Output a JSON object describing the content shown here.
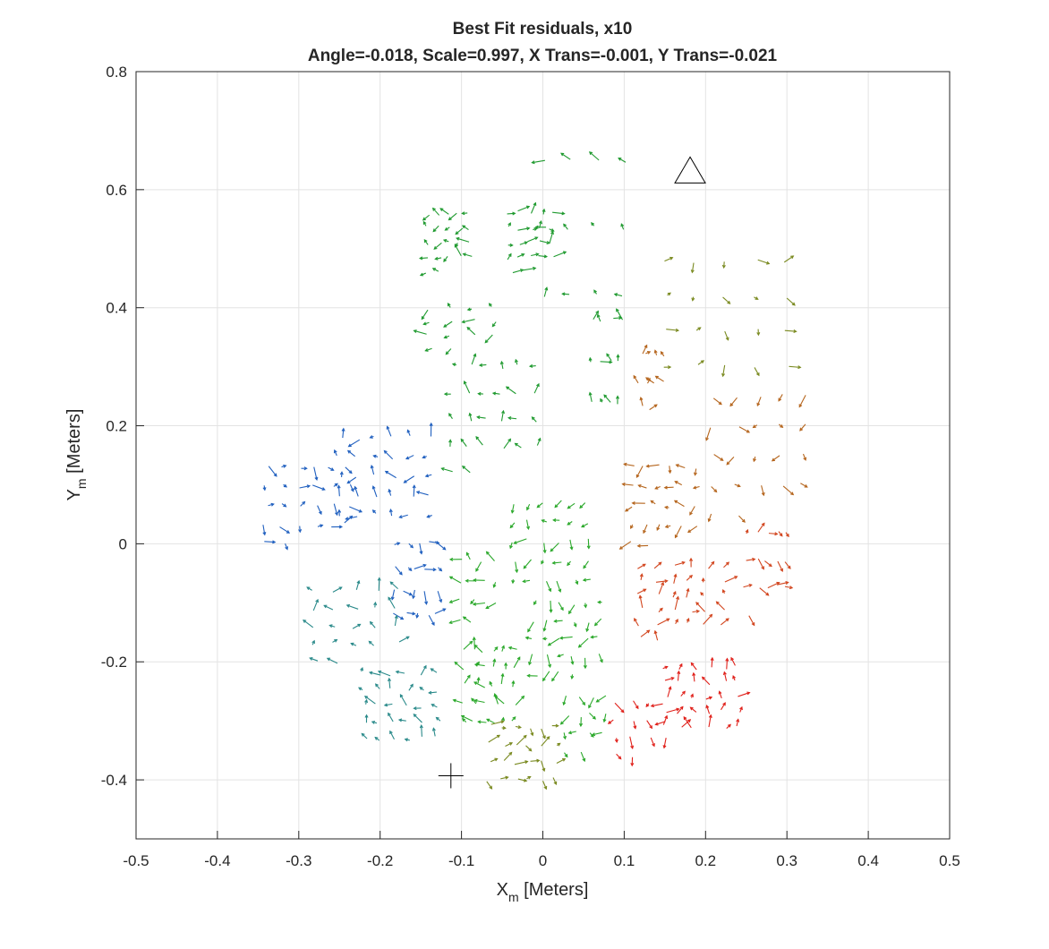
{
  "chart_data": {
    "type": "quiver",
    "title_line1": "Best Fit residuals, x10",
    "title_line2": "Angle=-0.018, Scale=0.997, X Trans=-0.001, Y Trans=-0.021",
    "xlabel": "X",
    "xlabel_sub": "m",
    "xlabel_unit": " [Meters]",
    "ylabel": "Y",
    "ylabel_sub": "m",
    "ylabel_unit": " [Meters]",
    "xlim": [
      -0.5,
      0.5
    ],
    "ylim": [
      -0.5,
      0.8
    ],
    "xticks": [
      -0.5,
      -0.4,
      -0.3,
      -0.2,
      -0.1,
      0,
      0.1,
      0.2,
      0.3,
      0.4,
      0.5
    ],
    "xtick_labels": [
      "-0.5",
      "-0.4",
      "-0.3",
      "-0.2",
      "-0.1",
      "0",
      "0.1",
      "0.2",
      "0.3",
      "0.4",
      "0.5"
    ],
    "yticks": [
      -0.4,
      -0.2,
      0,
      0.2,
      0.4,
      0.6,
      0.8
    ],
    "ytick_labels": [
      "-0.4",
      "-0.2",
      "0",
      "0.2",
      "0.4",
      "0.6",
      "0.8"
    ],
    "grid": true,
    "markers": [
      {
        "type": "triangle",
        "x": 0.181,
        "y": 0.631
      },
      {
        "type": "plus",
        "x": -0.113,
        "y": -0.393
      }
    ],
    "colors": {
      "blue": "#1f5fbf",
      "teal": "#2a8a8a",
      "green": "#2aa82a",
      "green_dark": "#1f9a2f",
      "olive": "#7a8a20",
      "orange": "#b5651d",
      "red_orange": "#d2451e",
      "red": "#e0201a"
    },
    "arrow_groups": [
      {
        "color": "green_dark",
        "count": 22,
        "x": [
          -0.14,
          -0.09
        ],
        "y": [
          0.46,
          0.56
        ]
      },
      {
        "color": "green_dark",
        "count": 22,
        "x": [
          -0.04,
          0.01
        ],
        "y": [
          0.46,
          0.56
        ]
      },
      {
        "color": "green_dark",
        "count": 12,
        "x": [
          0.0,
          0.1
        ],
        "y": [
          0.42,
          0.65
        ]
      },
      {
        "color": "green_dark",
        "count": 14,
        "x": [
          -0.14,
          -0.06
        ],
        "y": [
          0.33,
          0.4
        ]
      },
      {
        "color": "green_dark",
        "count": 12,
        "x": [
          0.06,
          0.095
        ],
        "y": [
          0.24,
          0.38
        ]
      },
      {
        "color": "green_dark",
        "count": 26,
        "x": [
          -0.11,
          -0.01
        ],
        "y": [
          0.12,
          0.3
        ]
      },
      {
        "color": "olive",
        "count": 20,
        "x": [
          0.15,
          0.3
        ],
        "y": [
          0.3,
          0.48
        ]
      },
      {
        "color": "orange",
        "count": 10,
        "x": [
          0.12,
          0.15
        ],
        "y": [
          0.23,
          0.32
        ]
      },
      {
        "color": "orange",
        "count": 22,
        "x": [
          0.21,
          0.32
        ],
        "y": [
          0.05,
          0.25
        ]
      },
      {
        "color": "orange",
        "count": 26,
        "x": [
          0.11,
          0.19
        ],
        "y": [
          0.0,
          0.13
        ]
      },
      {
        "color": "blue",
        "count": 26,
        "x": [
          -0.34,
          -0.24
        ],
        "y": [
          0.0,
          0.13
        ]
      },
      {
        "color": "blue",
        "count": 30,
        "x": [
          -0.25,
          -0.14
        ],
        "y": [
          0.05,
          0.18
        ]
      },
      {
        "color": "blue",
        "count": 20,
        "x": [
          -0.18,
          -0.13
        ],
        "y": [
          -0.12,
          -0.0
        ]
      },
      {
        "color": "teal",
        "count": 22,
        "x": [
          -0.28,
          -0.18
        ],
        "y": [
          -0.2,
          -0.08
        ]
      },
      {
        "color": "teal",
        "count": 30,
        "x": [
          -0.22,
          -0.13
        ],
        "y": [
          -0.33,
          -0.22
        ]
      },
      {
        "color": "green",
        "count": 30,
        "x": [
          -0.035,
          0.055
        ],
        "y": [
          -0.06,
          0.07
        ]
      },
      {
        "color": "green",
        "count": 14,
        "x": [
          -0.1,
          -0.06
        ],
        "y": [
          -0.13,
          -0.03
        ]
      },
      {
        "color": "green",
        "count": 28,
        "x": [
          -0.01,
          0.07
        ],
        "y": [
          -0.22,
          -0.1
        ]
      },
      {
        "color": "green",
        "count": 30,
        "x": [
          -0.095,
          -0.035
        ],
        "y": [
          -0.3,
          -0.18
        ]
      },
      {
        "color": "green",
        "count": 14,
        "x": [
          0.03,
          0.075
        ],
        "y": [
          -0.35,
          -0.26
        ]
      },
      {
        "color": "olive",
        "count": 24,
        "x": [
          -0.065,
          0.015
        ],
        "y": [
          -0.4,
          -0.31
        ]
      },
      {
        "color": "red_orange",
        "count": 32,
        "x": [
          0.12,
          0.22
        ],
        "y": [
          -0.16,
          -0.04
        ]
      },
      {
        "color": "red_orange",
        "count": 16,
        "x": [
          0.25,
          0.3
        ],
        "y": [
          -0.12,
          0.02
        ]
      },
      {
        "color": "red",
        "count": 14,
        "x": [
          0.09,
          0.15
        ],
        "y": [
          -0.36,
          -0.27
        ]
      },
      {
        "color": "red",
        "count": 30,
        "x": [
          0.15,
          0.24
        ],
        "y": [
          -0.31,
          -0.21
        ]
      }
    ]
  }
}
